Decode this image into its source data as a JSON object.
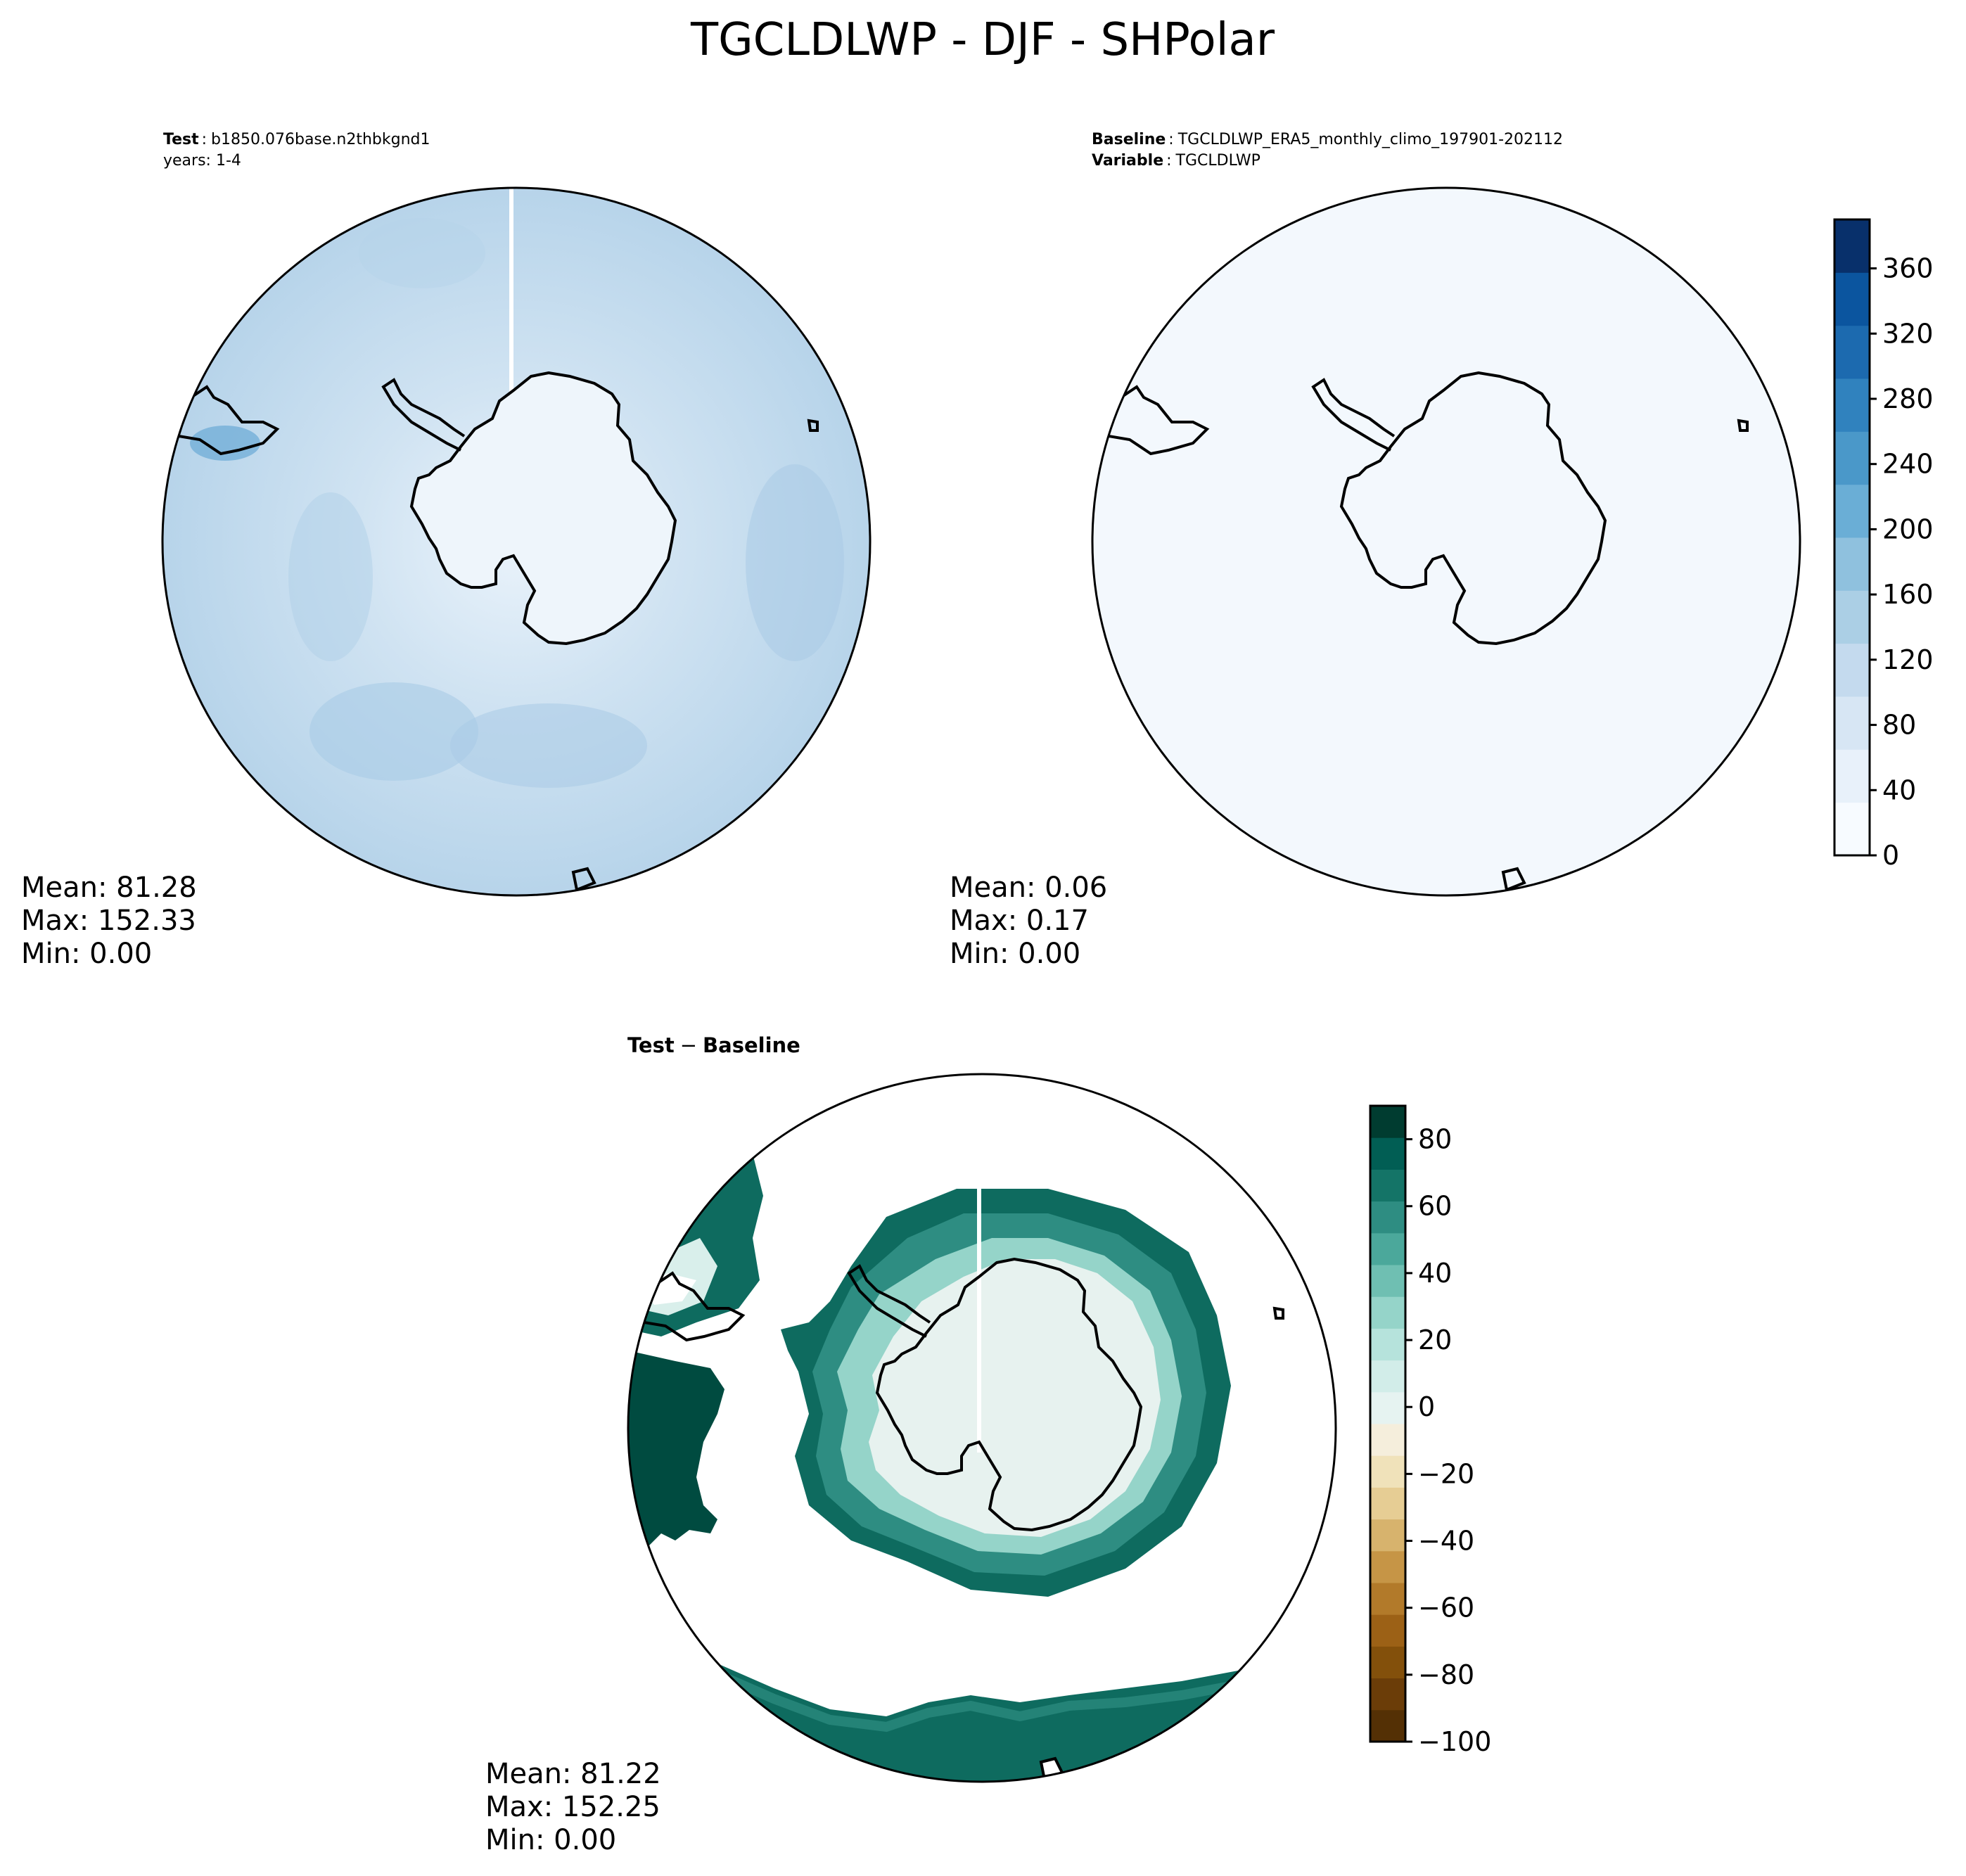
{
  "figure": {
    "title": "TGCLDLWP - DJF - SHPolar"
  },
  "panels": {
    "test": {
      "label_bold": "Test",
      "label_sep": ":",
      "label_value": "b1850.076base.n2thbkgnd1",
      "line2": "years: 1-4",
      "stats": {
        "mean": "Mean: 81.28",
        "max": "Max: 152.33",
        "min": "Min:  0.00"
      }
    },
    "baseline": {
      "label_bold": "Baseline",
      "label_sep": ":",
      "label_value": "TGCLDLWP_ERA5_monthly_climo_197901-202112",
      "line2_bold": "Variable",
      "line2_sep": ":",
      "line2_value": "TGCLDLWP",
      "stats": {
        "mean": "Mean:  0.06",
        "max": "Max:  0.17",
        "min": "Min:  0.00"
      }
    },
    "diff": {
      "label_a": "Test",
      "label_op": "−",
      "label_b": "Baseline",
      "stats": {
        "mean": "Mean: 81.22",
        "max": "Max: 152.25",
        "min": "Min:  0.00"
      }
    }
  },
  "colorbars": {
    "absolute": {
      "vmin": 0,
      "vmax": 390,
      "ticks": [
        "0",
        "40",
        "80",
        "120",
        "160",
        "200",
        "240",
        "280",
        "320",
        "360"
      ],
      "tick_values": [
        0,
        40,
        80,
        120,
        160,
        200,
        240,
        280,
        320,
        360
      ],
      "colors": [
        "#f7fbff",
        "#e8f1fa",
        "#d7e6f4",
        "#c4daee",
        "#abcfe5",
        "#8fc1de",
        "#6aaed6",
        "#4a98c9",
        "#3082be",
        "#1c6aaf",
        "#0b559f",
        "#08306b"
      ]
    },
    "difference": {
      "vmin": -100,
      "vmax": 90,
      "ticks": [
        "−100",
        "−80",
        "−60",
        "−40",
        "−20",
        "0",
        "20",
        "40",
        "60",
        "80"
      ],
      "tick_values": [
        -100,
        -80,
        -60,
        -40,
        -20,
        0,
        20,
        40,
        60,
        80
      ],
      "colors": [
        "#543005",
        "#6b3d08",
        "#83500b",
        "#9c6116",
        "#b27a2a",
        "#c69546",
        "#d7b36d",
        "#e6cd94",
        "#f0e2ba",
        "#f5eedc",
        "#e6f3f1",
        "#d2ede9",
        "#b6e3dc",
        "#95d4c9",
        "#6fbfb2",
        "#4ba89b",
        "#2e8d82",
        "#147467",
        "#015e54",
        "#003c30"
      ]
    }
  },
  "colors": {
    "ocean_test": "#c2d9ed",
    "ice_test": "#eef5fb",
    "baseline_fill": "#f3f8fd",
    "diff_high": "#004b40",
    "diff_mid": "#0e6b5f",
    "diff_ring": "#2e8d82",
    "diff_light": "#d9efeb",
    "diff_land": "#e7f2ef"
  }
}
